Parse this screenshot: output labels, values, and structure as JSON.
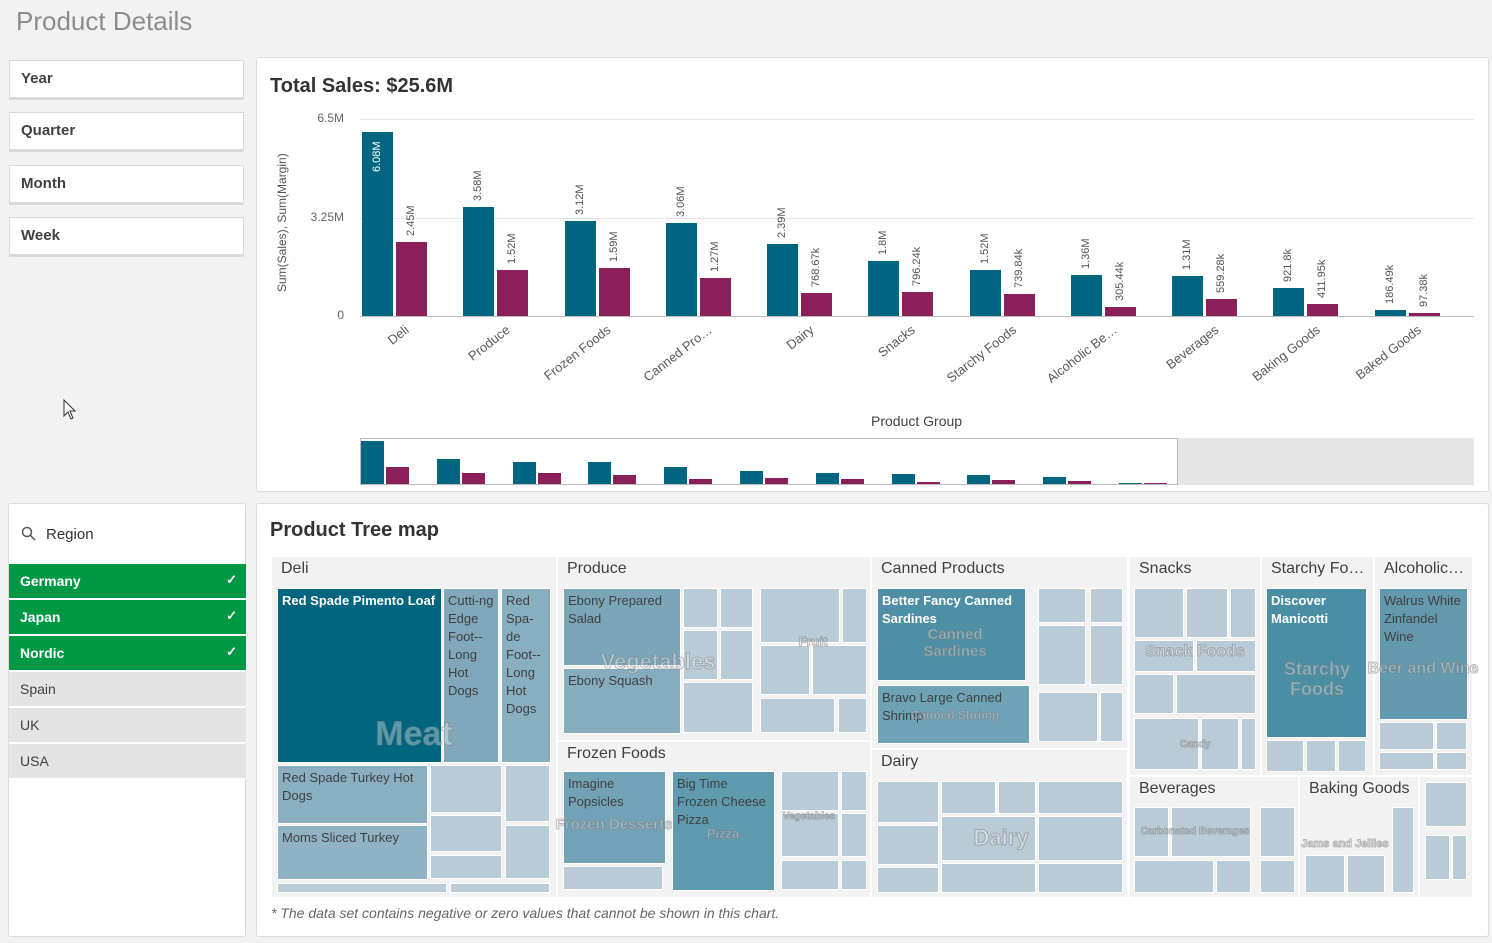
{
  "page_title": "Product Details",
  "filters": [
    "Year",
    "Quarter",
    "Month",
    "Week"
  ],
  "region": {
    "title": "Region",
    "icon": "search-icon",
    "items": [
      {
        "label": "Germany",
        "state": "selected"
      },
      {
        "label": "Japan",
        "state": "selected"
      },
      {
        "label": "Nordic",
        "state": "selected"
      },
      {
        "label": "Spain",
        "state": "excluded"
      },
      {
        "label": "UK",
        "state": "excluded"
      },
      {
        "label": "USA",
        "state": "excluded"
      }
    ],
    "check": "✓"
  },
  "sales_chart": {
    "title": "Total Sales: $25.6M"
  },
  "chart_data": {
    "type": "bar",
    "xlabel": "Product Group",
    "ylabel": "Sum(Sales), Sum(Margin)",
    "ylim": [
      0,
      6500000
    ],
    "yticks": [
      {
        "v": 0,
        "label": "0"
      },
      {
        "v": 3250000,
        "label": "3.25M"
      },
      {
        "v": 6500000,
        "label": "6.5M"
      }
    ],
    "grid": true,
    "colors": {
      "Sales": "#006580",
      "Margin": "#8a1f5a"
    },
    "categories": [
      "Deli",
      "Produce",
      "Frozen Foods",
      "Canned Pro…",
      "Dairy",
      "Snacks",
      "Starchy Foods",
      "Alcoholic Be…",
      "Beverages",
      "Baking Goods",
      "Baked Goods"
    ],
    "series": [
      {
        "values": [
          6080000,
          3580000,
          3120000,
          3060000,
          2390000,
          1800000,
          1520000,
          1360000,
          1310000,
          921800,
          186490
        ],
        "labels": [
          "6.08M",
          "3.58M",
          "3.12M",
          "3.06M",
          "2.39M",
          "1.8M",
          "1.52M",
          "1.36M",
          "1.31M",
          "921.8k",
          "186.49k"
        ]
      },
      {
        "values": [
          2450000,
          1520000,
          1590000,
          1270000,
          768670,
          796240,
          739840,
          305440,
          559280,
          411950,
          97380
        ],
        "labels": [
          "2.45M",
          "1.52M",
          "1.59M",
          "1.27M",
          "768.67k",
          "796.24k",
          "739.84k",
          "305.44k",
          "559.28k",
          "411.95k",
          "97.38k"
        ]
      }
    ]
  },
  "treemap": {
    "title": "Product Tree map",
    "footnote": "* The data set contains negative or zero values that cannot be shown in this chart.",
    "groups": [
      "Deli",
      "Produce",
      "Frozen Foods",
      "Canned Products",
      "Dairy",
      "Snacks",
      "Starchy Fo…",
      "Alcoholic…",
      "Beverages",
      "Baking Goods"
    ],
    "tiles": [
      "Red Spade Pimento Loaf",
      "Cutti-ng Edge Foot--Long Hot Dogs",
      "Red Spa-de Foot--Long Hot Dogs",
      "Red Spade Turkey Hot Dogs",
      "Moms Sliced Turkey",
      "Ebony Prepared Salad",
      "Ebony Squash",
      "Imagine Popsicles",
      "Big Time Frozen Cheese Pizza",
      "Better Fancy Canned Sardines",
      "Bravo Large Canned Shrimp",
      "Discover Manicotti",
      "Walrus White Zinfandel Wine"
    ],
    "categories": [
      "Meat",
      "Vegetables",
      "Fruit",
      "Frozen Desserts",
      "Pizza",
      "Vegetables",
      "Canned Sardines",
      "Canned Shrimp",
      "Dairy",
      "Snack Foods",
      "Candy",
      "Starchy Foods",
      "Beer and Wine",
      "Carbonated Beverages",
      "Jams and Jellies"
    ]
  }
}
